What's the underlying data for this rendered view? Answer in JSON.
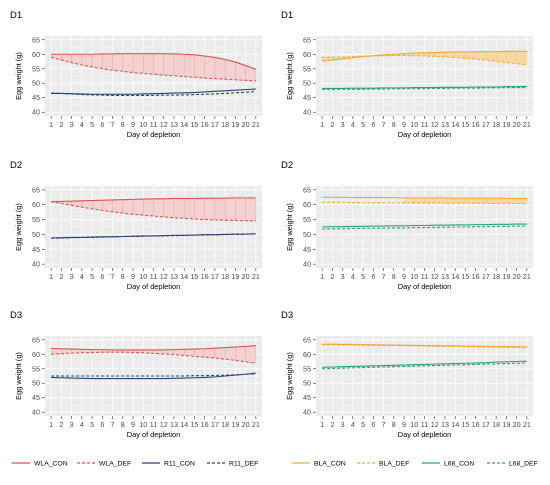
{
  "chart_data": {
    "type": "line",
    "x": [
      1,
      2,
      3,
      4,
      5,
      6,
      7,
      8,
      9,
      10,
      11,
      12,
      13,
      14,
      15,
      16,
      17,
      18,
      19,
      20,
      21
    ],
    "xlabel": "Day of depletion",
    "ylabel": "Egg weight (g)",
    "ylim": [
      40,
      65
    ],
    "yticks": [
      40,
      45,
      50,
      55,
      60,
      65
    ],
    "grid": true,
    "panels": [
      {
        "title": "D1",
        "column": "left",
        "ribbon_between": [
          0,
          1
        ],
        "ribbon_color": "#f4cccc",
        "series": [
          {
            "name": "WLA_CON",
            "color": "#d9534f",
            "dash": false,
            "values": [
              60.0,
              60.0,
              60.0,
              60.0,
              60.0,
              60.1,
              60.1,
              60.2,
              60.2,
              60.2,
              60.2,
              60.2,
              60.1,
              60.0,
              59.8,
              59.4,
              58.9,
              58.2,
              57.3,
              56.1,
              54.8
            ]
          },
          {
            "name": "WLA_DEF",
            "color": "#d9534f",
            "dash": true,
            "values": [
              59.0,
              58.0,
              57.1,
              56.3,
              55.6,
              55.0,
              54.5,
              54.1,
              53.7,
              53.4,
              53.1,
              52.8,
              52.6,
              52.3,
              52.1,
              51.8,
              51.6,
              51.4,
              51.2,
              51.0,
              50.8
            ]
          },
          {
            "name": "R11_CON",
            "color": "#24446b",
            "dash": false,
            "values": [
              46.5,
              46.5,
              46.4,
              46.3,
              46.2,
              46.2,
              46.2,
              46.2,
              46.2,
              46.3,
              46.4,
              46.5,
              46.6,
              46.7,
              46.8,
              47.0,
              47.2,
              47.4,
              47.6,
              47.8,
              48.0
            ]
          },
          {
            "name": "R11_DEF",
            "color": "#24446b",
            "dash": true,
            "values": [
              46.6,
              46.5,
              46.3,
              46.1,
              46.0,
              45.9,
              45.8,
              45.8,
              45.8,
              45.8,
              45.8,
              45.9,
              45.9,
              46.0,
              46.1,
              46.2,
              46.3,
              46.5,
              46.7,
              46.9,
              47.1
            ]
          }
        ]
      },
      {
        "title": "D1",
        "column": "right",
        "ribbon_between": [
          0,
          1
        ],
        "ribbon_color": "#f8d596",
        "series": [
          {
            "name": "BLA_CON",
            "color": "#f0a93a",
            "dash": false,
            "values": [
              57.6,
              58.0,
              58.4,
              58.8,
              59.2,
              59.5,
              59.8,
              60.0,
              60.2,
              60.4,
              60.5,
              60.6,
              60.7,
              60.8,
              60.8,
              60.9,
              60.9,
              60.9,
              61.0,
              61.0,
              61.0
            ]
          },
          {
            "name": "BLA_DEF",
            "color": "#f0a93a",
            "dash": true,
            "values": [
              59.0,
              59.0,
              59.1,
              59.2,
              59.3,
              59.4,
              59.5,
              59.6,
              59.6,
              59.5,
              59.4,
              59.3,
              59.1,
              58.9,
              58.6,
              58.3,
              58.0,
              57.6,
              57.2,
              56.8,
              56.3
            ]
          },
          {
            "name": "L68_CON",
            "color": "#2aa179",
            "dash": false,
            "values": [
              48.2,
              48.2,
              48.2,
              48.3,
              48.3,
              48.3,
              48.4,
              48.4,
              48.4,
              48.5,
              48.5,
              48.5,
              48.6,
              48.6,
              48.6,
              48.7,
              48.7,
              48.7,
              48.8,
              48.8,
              48.9
            ]
          },
          {
            "name": "L68_DEF",
            "color": "#2aa179",
            "dash": true,
            "values": [
              47.8,
              47.8,
              47.9,
              47.9,
              47.9,
              48.0,
              48.0,
              48.1,
              48.1,
              48.1,
              48.2,
              48.2,
              48.2,
              48.3,
              48.3,
              48.3,
              48.4,
              48.4,
              48.5,
              48.5,
              48.5
            ]
          }
        ]
      },
      {
        "title": "D2",
        "column": "left",
        "ribbon_between": [
          0,
          1
        ],
        "ribbon_color": "#f4cccc",
        "series": [
          {
            "name": "WLA_CON",
            "color": "#d9534f",
            "dash": false,
            "values": [
              61.0,
              61.1,
              61.2,
              61.3,
              61.4,
              61.5,
              61.6,
              61.7,
              61.8,
              61.9,
              62.0,
              62.0,
              62.1,
              62.1,
              62.1,
              62.2,
              62.2,
              62.2,
              62.3,
              62.3,
              62.3
            ]
          },
          {
            "name": "WLA_DEF",
            "color": "#d9534f",
            "dash": true,
            "values": [
              61.0,
              60.4,
              59.8,
              59.2,
              58.6,
              58.1,
              57.6,
              57.2,
              56.8,
              56.5,
              56.2,
              55.9,
              55.6,
              55.4,
              55.2,
              55.0,
              54.9,
              54.8,
              54.7,
              54.6,
              54.5
            ]
          },
          {
            "name": "R11_CON",
            "color": "#24446b",
            "dash": false,
            "values": [
              48.8,
              48.9,
              49.0,
              49.0,
              49.1,
              49.2,
              49.2,
              49.3,
              49.4,
              49.5,
              49.5,
              49.6,
              49.7,
              49.7,
              49.8,
              49.9,
              49.9,
              50.0,
              50.1,
              50.1,
              50.2
            ]
          },
          {
            "name": "R11_DEF",
            "color": "#24446b",
            "dash": true,
            "values": [
              48.7,
              48.8,
              48.9,
              49.0,
              49.0,
              49.1,
              49.2,
              49.3,
              49.3,
              49.4,
              49.5,
              49.5,
              49.6,
              49.7,
              49.8,
              49.8,
              49.9,
              50.0,
              50.0,
              50.1,
              50.2
            ]
          }
        ]
      },
      {
        "title": "D2",
        "column": "right",
        "ribbon_between": [
          0,
          1
        ],
        "ribbon_color": "#f8d596",
        "ribbon_from": 9,
        "series": [
          {
            "name": "BLA_CON",
            "color": "#f0a93a",
            "dash": false,
            "values": [
              62.5,
              62.5,
              62.5,
              62.4,
              62.4,
              62.4,
              62.4,
              62.4,
              62.3,
              62.3,
              62.3,
              62.3,
              62.3,
              62.2,
              62.2,
              62.2,
              62.2,
              62.2,
              62.2,
              62.1,
              62.1
            ]
          },
          {
            "name": "BLA_DEF",
            "color": "#f0a93a",
            "dash": true,
            "values": [
              60.8,
              60.8,
              60.8,
              60.7,
              60.7,
              60.7,
              60.7,
              60.6,
              60.6,
              60.6,
              60.6,
              60.6,
              60.5,
              60.5,
              60.5,
              60.5,
              60.5,
              60.4,
              60.4,
              60.4,
              60.4
            ]
          },
          {
            "name": "L68_CON",
            "color": "#2aa179",
            "dash": false,
            "values": [
              52.5,
              52.6,
              52.6,
              52.7,
              52.7,
              52.8,
              52.8,
              52.9,
              52.9,
              53.0,
              53.0,
              53.1,
              53.1,
              53.2,
              53.2,
              53.3,
              53.3,
              53.4,
              53.4,
              53.5,
              53.5
            ]
          },
          {
            "name": "L68_DEF",
            "color": "#2aa179",
            "dash": true,
            "values": [
              51.8,
              51.9,
              51.9,
              52.0,
              52.0,
              52.1,
              52.1,
              52.2,
              52.2,
              52.3,
              52.3,
              52.4,
              52.4,
              52.5,
              52.5,
              52.6,
              52.6,
              52.7,
              52.7,
              52.8,
              52.8
            ]
          }
        ]
      },
      {
        "title": "D3",
        "column": "left",
        "ribbon_between": [
          0,
          1
        ],
        "ribbon_color": "#f4cccc",
        "series": [
          {
            "name": "WLA_CON",
            "color": "#d9534f",
            "dash": false,
            "values": [
              62.0,
              61.9,
              61.8,
              61.7,
              61.6,
              61.6,
              61.5,
              61.5,
              61.5,
              61.5,
              61.5,
              61.5,
              61.6,
              61.7,
              61.8,
              61.9,
              62.1,
              62.3,
              62.5,
              62.7,
              63.0
            ]
          },
          {
            "name": "WLA_DEF",
            "color": "#d9534f",
            "dash": true,
            "values": [
              60.0,
              60.2,
              60.4,
              60.5,
              60.6,
              60.7,
              60.7,
              60.7,
              60.6,
              60.5,
              60.3,
              60.1,
              59.9,
              59.6,
              59.3,
              59.0,
              58.7,
              58.3,
              57.9,
              57.4,
              56.9
            ]
          },
          {
            "name": "R11_CON",
            "color": "#24446b",
            "dash": false,
            "values": [
              52.0,
              51.9,
              51.8,
              51.7,
              51.6,
              51.6,
              51.6,
              51.6,
              51.6,
              51.6,
              51.6,
              51.6,
              51.7,
              51.8,
              51.9,
              52.0,
              52.2,
              52.5,
              52.8,
              53.1,
              53.5
            ]
          },
          {
            "name": "R11_DEF",
            "color": "#24446b",
            "dash": true,
            "values": [
              52.5,
              52.5,
              52.5,
              52.5,
              52.5,
              52.5,
              52.5,
              52.5,
              52.5,
              52.5,
              52.5,
              52.5,
              52.5,
              52.5,
              52.6,
              52.6,
              52.7,
              52.8,
              52.9,
              53.1,
              53.3
            ]
          }
        ]
      },
      {
        "title": "D3",
        "column": "right",
        "ribbon_between": [
          0,
          1
        ],
        "ribbon_color": "#f8d596",
        "series": [
          {
            "name": "BLA_CON",
            "color": "#f0a93a",
            "dash": false,
            "values": [
              63.5,
              63.5,
              63.4,
              63.4,
              63.3,
              63.3,
              63.2,
              63.2,
              63.1,
              63.1,
              63.0,
              63.0,
              62.9,
              62.9,
              62.8,
              62.8,
              62.7,
              62.7,
              62.6,
              62.6,
              62.5
            ]
          },
          {
            "name": "BLA_DEF",
            "color": "#f0a93a",
            "dash": true,
            "values": [
              63.3,
              63.3,
              63.2,
              63.2,
              63.1,
              63.1,
              63.0,
              63.0,
              62.9,
              62.9,
              62.8,
              62.8,
              62.7,
              62.7,
              62.6,
              62.6,
              62.5,
              62.5,
              62.4,
              62.4,
              62.3
            ]
          },
          {
            "name": "L68_CON",
            "color": "#2aa179",
            "dash": false,
            "values": [
              55.5,
              55.6,
              55.7,
              55.8,
              55.9,
              56.0,
              56.1,
              56.2,
              56.3,
              56.4,
              56.5,
              56.6,
              56.7,
              56.8,
              56.9,
              57.0,
              57.1,
              57.3,
              57.4,
              57.5,
              57.6
            ]
          },
          {
            "name": "L68_DEF",
            "color": "#2aa179",
            "dash": true,
            "values": [
              55.0,
              55.1,
              55.2,
              55.3,
              55.4,
              55.5,
              55.6,
              55.7,
              55.8,
              55.9,
              56.0,
              56.1,
              56.2,
              56.3,
              56.4,
              56.5,
              56.6,
              56.7,
              56.8,
              56.9,
              57.0
            ]
          }
        ]
      }
    ],
    "legends": [
      {
        "column": "left",
        "items": [
          {
            "name": "WLA_CON",
            "color": "#d9534f",
            "dash": false
          },
          {
            "name": "WLA_DEF",
            "color": "#d9534f",
            "dash": true
          },
          {
            "name": "R11_CON",
            "color": "#24446b",
            "dash": false
          },
          {
            "name": "R11_DEF",
            "color": "#24446b",
            "dash": true
          }
        ]
      },
      {
        "column": "right",
        "items": [
          {
            "name": "BLA_CON",
            "color": "#f0a93a",
            "dash": false
          },
          {
            "name": "BLA_DEF",
            "color": "#f0a93a",
            "dash": true
          },
          {
            "name": "L68_CON",
            "color": "#2aa179",
            "dash": false
          },
          {
            "name": "L68_DEF",
            "color": "#2aa179",
            "dash": true
          }
        ]
      }
    ]
  }
}
